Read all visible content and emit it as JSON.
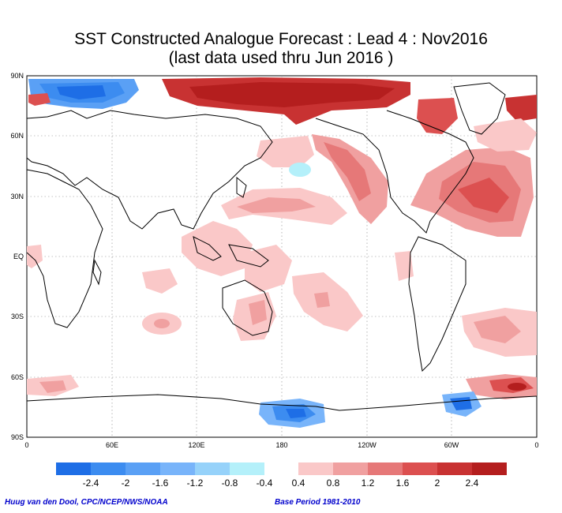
{
  "title": {
    "line1": "SST Constructed Analogue Forecast : Lead 4 : Nov2016",
    "line2": "(last data used thru Jun 2016 )"
  },
  "map": {
    "lat_labels": [
      "90N",
      "60N",
      "30N",
      "EQ",
      "30S",
      "60S",
      "90S"
    ],
    "lon_labels": [
      "0",
      "60E",
      "120E",
      "180",
      "120W",
      "60W",
      "0"
    ]
  },
  "colorbar": {
    "negative_colors": [
      "#1e6ee6",
      "#3c8cf0",
      "#5aa0f5",
      "#78b4fa",
      "#96d2fa",
      "#b4f0fa"
    ],
    "positive_colors": [
      "#fac8c8",
      "#f0a0a0",
      "#e67878",
      "#dc5050",
      "#c83232",
      "#b41e1e"
    ],
    "negative_labels": [
      "-2.4",
      "-2",
      "-1.6",
      "-1.2",
      "-0.8",
      "-0.4"
    ],
    "positive_labels": [
      "0.4",
      "0.8",
      "1.2",
      "1.6",
      "2",
      "2.4"
    ]
  },
  "credits": {
    "left": "Huug van den Dool, CPC/NCEP/NWS/NOAA",
    "right": "Base Period 1981-2010"
  }
}
